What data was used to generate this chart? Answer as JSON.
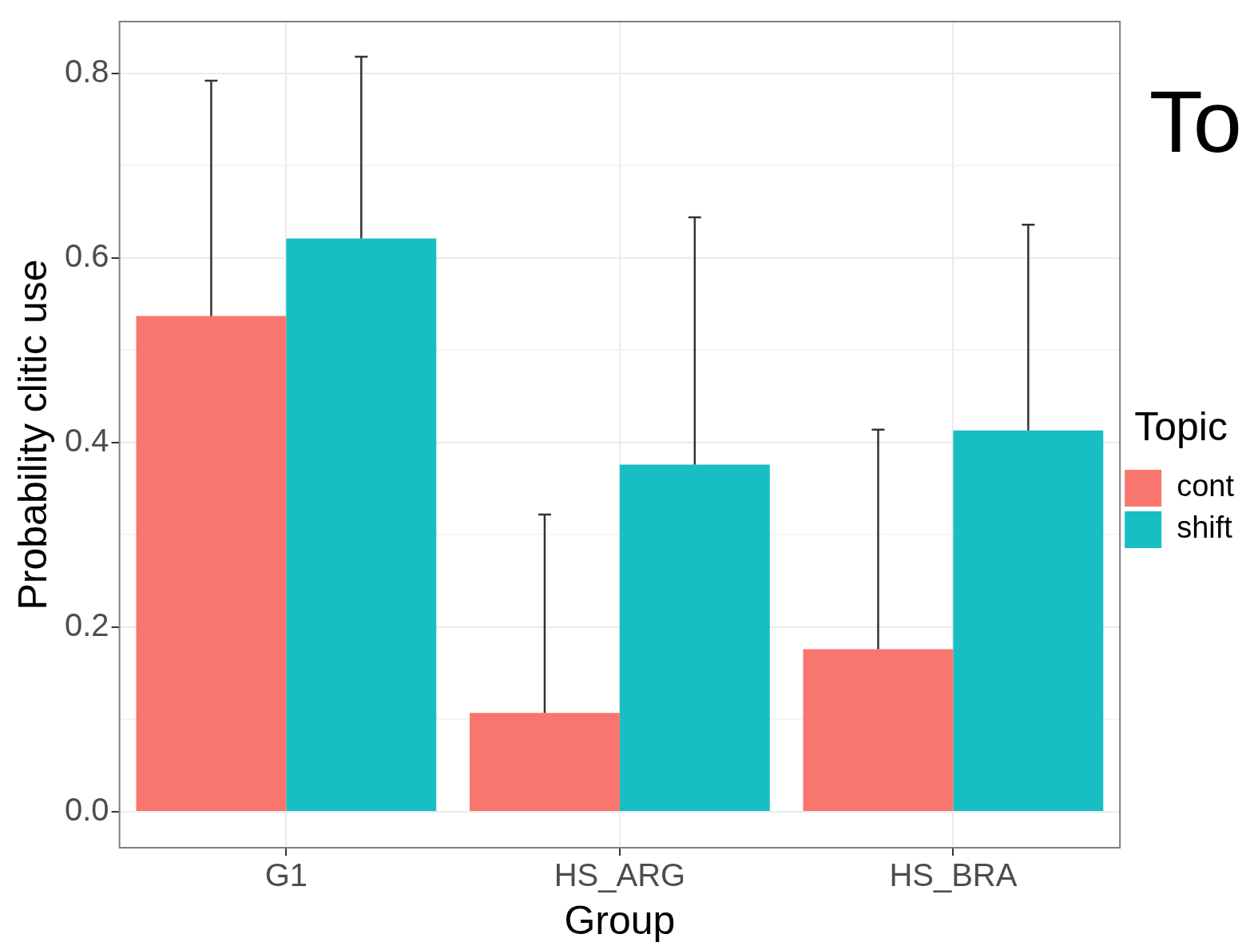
{
  "chart_data": {
    "type": "bar",
    "xlabel": "Group",
    "ylabel": "Probability clitic use",
    "legend_title": "Topic",
    "annotations": [
      "To"
    ],
    "categories": [
      "G1",
      "HS_ARG",
      "HS_BRA"
    ],
    "series": [
      {
        "name": "cont",
        "color": "#f8766d",
        "values": [
          0.537,
          0.107,
          0.176
        ],
        "errors": [
          [
            0.537,
            0.792
          ],
          [
            0.107,
            0.322
          ],
          [
            0.176,
            0.414
          ]
        ]
      },
      {
        "name": "shift",
        "color": "#17bec4",
        "values": [
          0.621,
          0.376,
          0.413
        ],
        "errors": [
          [
            0.621,
            0.818
          ],
          [
            0.376,
            0.644
          ],
          [
            0.413,
            0.636
          ]
        ]
      }
    ],
    "ylim": [
      -0.039,
      0.856
    ],
    "yticks": [
      {
        "value": 0,
        "label": "0.0"
      },
      {
        "value": 0.1,
        "label": null
      },
      {
        "value": 0.2,
        "label": "0.2"
      },
      {
        "value": 0.3,
        "label": null
      },
      {
        "value": 0.4,
        "label": "0.4"
      },
      {
        "value": 0.5,
        "label": null
      },
      {
        "value": 0.6,
        "label": "0.6"
      },
      {
        "value": 0.7,
        "label": null
      },
      {
        "value": 0.8,
        "label": "0.8"
      }
    ],
    "grid": true,
    "legend": "right"
  }
}
